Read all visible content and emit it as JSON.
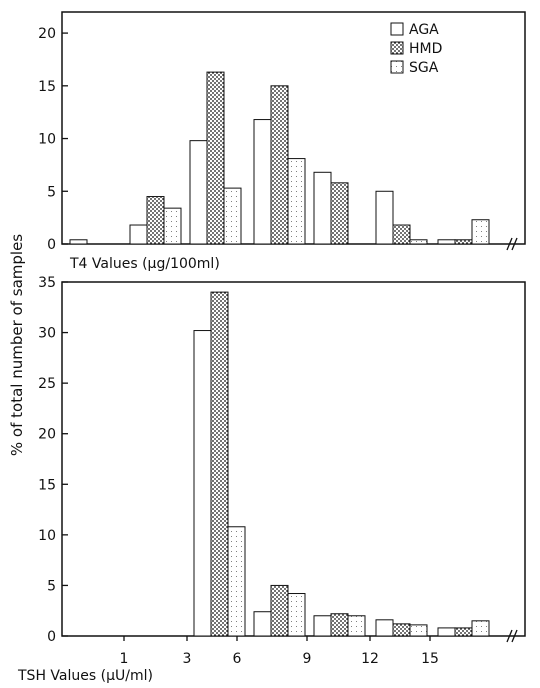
{
  "figure": {
    "ylabel": "% of total number of samples"
  },
  "legend": {
    "items": [
      {
        "label": "AGA",
        "pattern": "white"
      },
      {
        "label": "HMD",
        "pattern": "dots"
      },
      {
        "label": "SGA",
        "pattern": "light"
      }
    ]
  },
  "chart_data": [
    {
      "type": "bar",
      "xlabel": "T4 Values (µg/100ml)",
      "ylabel": "% of total number of samples",
      "ylim": [
        0,
        22
      ],
      "yticks": [
        0,
        5,
        10,
        15,
        20
      ],
      "xticks": [],
      "series": [
        {
          "name": "AGA",
          "values": [
            0.4,
            1.8,
            9.8,
            11.8,
            6.8,
            5.0,
            0.4
          ]
        },
        {
          "name": "HMD",
          "values": [
            0,
            4.5,
            16.3,
            15.0,
            5.8,
            1.8,
            0.4
          ]
        },
        {
          "name": "SGA",
          "values": [
            0,
            3.4,
            5.3,
            8.1,
            0,
            0.4,
            2.3
          ]
        }
      ],
      "legend": "top-right",
      "grid": false
    },
    {
      "type": "bar",
      "xlabel": "TSH Values (µU/ml)",
      "ylabel": "% of total number of samples",
      "ylim": [
        0,
        35
      ],
      "yticks": [
        0,
        5,
        10,
        15,
        20,
        25,
        30,
        35
      ],
      "xticks": [
        "1",
        "3",
        "6",
        "9",
        "12",
        "15"
      ],
      "series": [
        {
          "name": "AGA",
          "values": [
            0,
            0,
            30.2,
            2.4,
            2.0,
            1.6,
            0.8
          ]
        },
        {
          "name": "HMD",
          "values": [
            0,
            0,
            34.0,
            5.0,
            2.2,
            1.2,
            0.8
          ]
        },
        {
          "name": "SGA",
          "values": [
            0,
            0,
            10.8,
            4.2,
            2.0,
            1.1,
            1.5
          ]
        }
      ],
      "legend": "none",
      "grid": false
    }
  ]
}
